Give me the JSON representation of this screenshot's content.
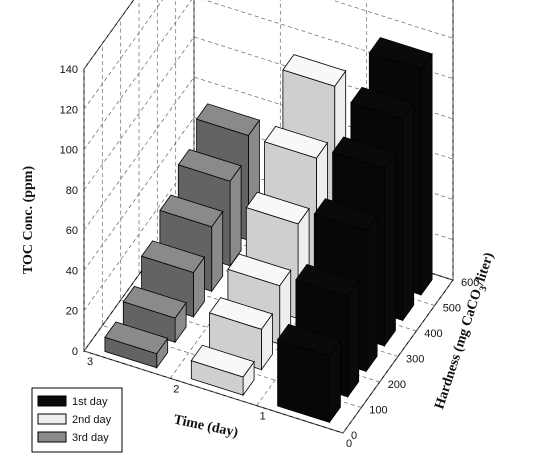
{
  "chart_data": {
    "type": "bar",
    "projection": "3d",
    "title": "",
    "zlabel": "TOC Conc. (ppm)",
    "xlabel": "Time (day)",
    "ylabel_parts": [
      "Hardness (mg CaCO",
      "3",
      "/liter)"
    ],
    "zlim": [
      0,
      140
    ],
    "z_ticks": [
      0,
      20,
      40,
      60,
      80,
      100,
      120,
      140
    ],
    "x_ticks": [
      0,
      1,
      2,
      3
    ],
    "y_ticks": [
      0,
      100,
      200,
      300,
      400,
      500,
      600
    ],
    "grid": true,
    "legend_position": "bottom-left",
    "series": [
      {
        "name": "1st day",
        "color": "#0a0a0a",
        "time": 0.5,
        "hardness": [
          0,
          100,
          200,
          300,
          400,
          500
        ],
        "values": [
          33,
          50,
          70,
          88,
          100,
          112
        ]
      },
      {
        "name": "2nd day",
        "color": "#eeeeee",
        "time": 1.5,
        "hardness": [
          0,
          100,
          200,
          300,
          400,
          500
        ],
        "values": [
          9,
          20,
          29,
          47,
          67,
          90
        ]
      },
      {
        "name": "3rd day",
        "color": "#8a8a8a",
        "time": 2.5,
        "hardness": [
          0,
          100,
          200,
          300,
          400,
          500
        ],
        "values": [
          7,
          12,
          22,
          32,
          42,
          52
        ]
      }
    ]
  }
}
